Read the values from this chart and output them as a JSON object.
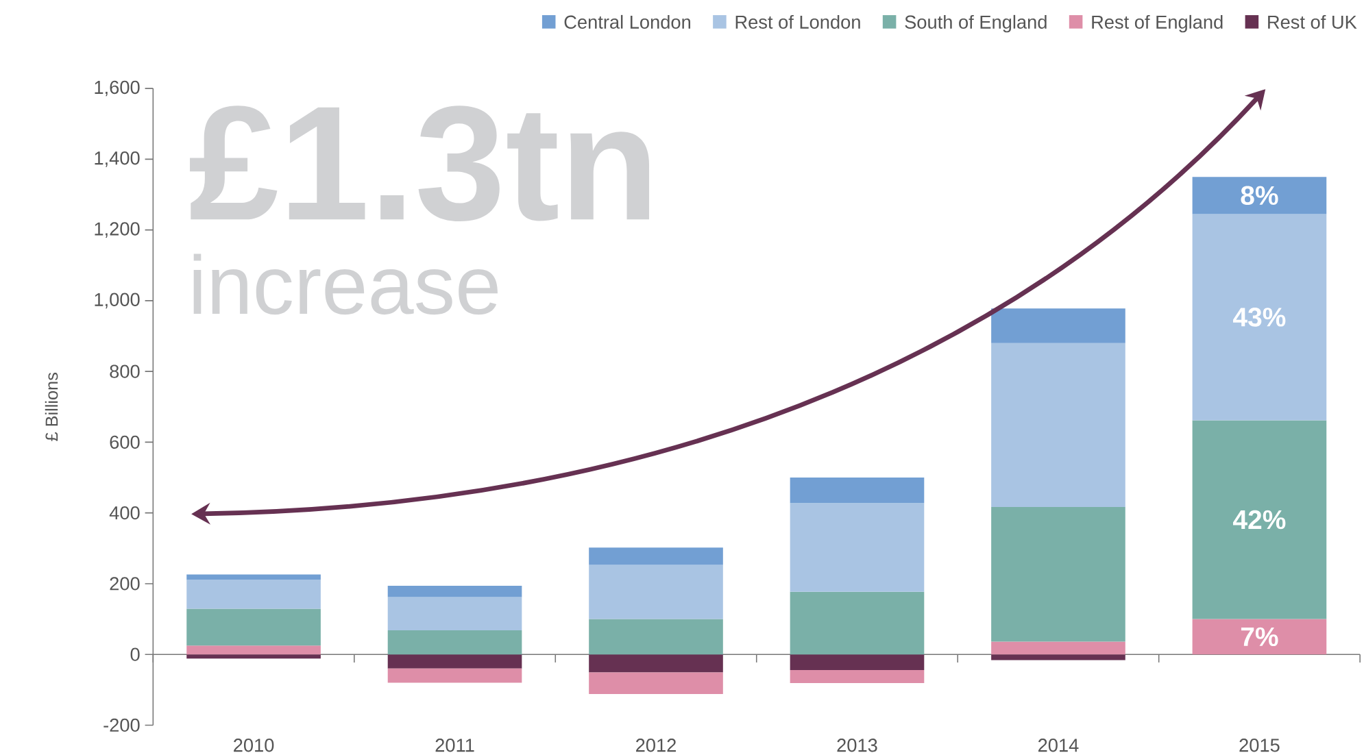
{
  "chart_data": {
    "type": "bar",
    "stacked": true,
    "ylabel": "£ Billions",
    "categories": [
      "2010",
      "2011",
      "2012",
      "2013",
      "2014",
      "2015"
    ],
    "series": [
      {
        "name": "Rest of UK",
        "color": "#663152",
        "values": [
          -12,
          -40,
          -51,
          -44,
          -16,
          0
        ]
      },
      {
        "name": "Rest of England",
        "color": "#de8ea8",
        "values": [
          25,
          -40,
          -61,
          -37,
          36,
          100
        ]
      },
      {
        "name": "South of England",
        "color": "#7ab0a8",
        "values": [
          104,
          68,
          100,
          177,
          381,
          562
        ]
      },
      {
        "name": "Rest of London",
        "color": "#a9c4e3",
        "values": [
          82,
          94,
          153,
          251,
          463,
          583
        ]
      },
      {
        "name": "Central London",
        "color": "#729fd3",
        "values": [
          15,
          32,
          49,
          72,
          98,
          105
        ]
      }
    ],
    "ylim": [
      -200,
      1600
    ],
    "yticks": [
      -200,
      0,
      200,
      400,
      600,
      800,
      {
        "value": 1000,
        "label": "1,000"
      },
      {
        "value": 1200,
        "label": "1,200"
      },
      {
        "value": 1400,
        "label": "1,400"
      },
      {
        "value": 1600,
        "label": "1,600"
      }
    ],
    "legend": "top right",
    "annotations": [
      "£1.3tn",
      "increase",
      "7%",
      "42%",
      "43%",
      "8%"
    ]
  }
}
